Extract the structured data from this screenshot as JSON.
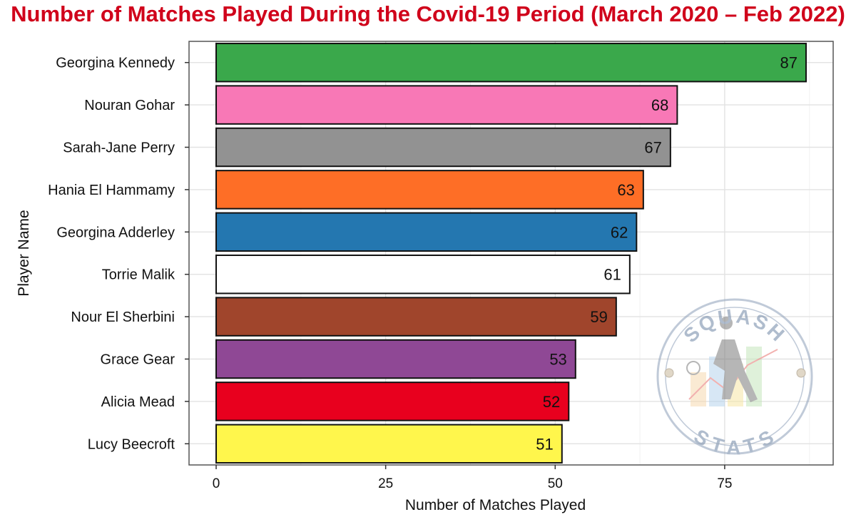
{
  "chart_data": {
    "type": "bar",
    "orientation": "horizontal",
    "title": "Number of Matches Played During the Covid-19 Period (March 2020 – Feb 2022)",
    "xlabel": "Number of Matches Played",
    "ylabel": "Player Name",
    "categories": [
      "Georgina Kennedy",
      "Nouran Gohar",
      "Sarah-Jane Perry",
      "Hania El Hammamy",
      "Georgina Adderley",
      "Torrie Malik",
      "Nour El Sherbini",
      "Grace Gear",
      "Alicia Mead",
      "Lucy Beecroft"
    ],
    "values": [
      87,
      68,
      67,
      63,
      62,
      61,
      59,
      53,
      52,
      51
    ],
    "colors": [
      "#3aa84b",
      "#f878b6",
      "#929292",
      "#fe6e26",
      "#2477b0",
      "#ffffff",
      "#a0452c",
      "#8f4895",
      "#e8001e",
      "#fff64c"
    ],
    "xlim": [
      -4,
      91
    ],
    "xticks": [
      0,
      25,
      50,
      75
    ],
    "grid": true,
    "legend": "none",
    "title_color": "#d0021b"
  },
  "watermark": {
    "top": "SQUASH",
    "bottom": "STATS",
    "color": "#6f86a6"
  }
}
